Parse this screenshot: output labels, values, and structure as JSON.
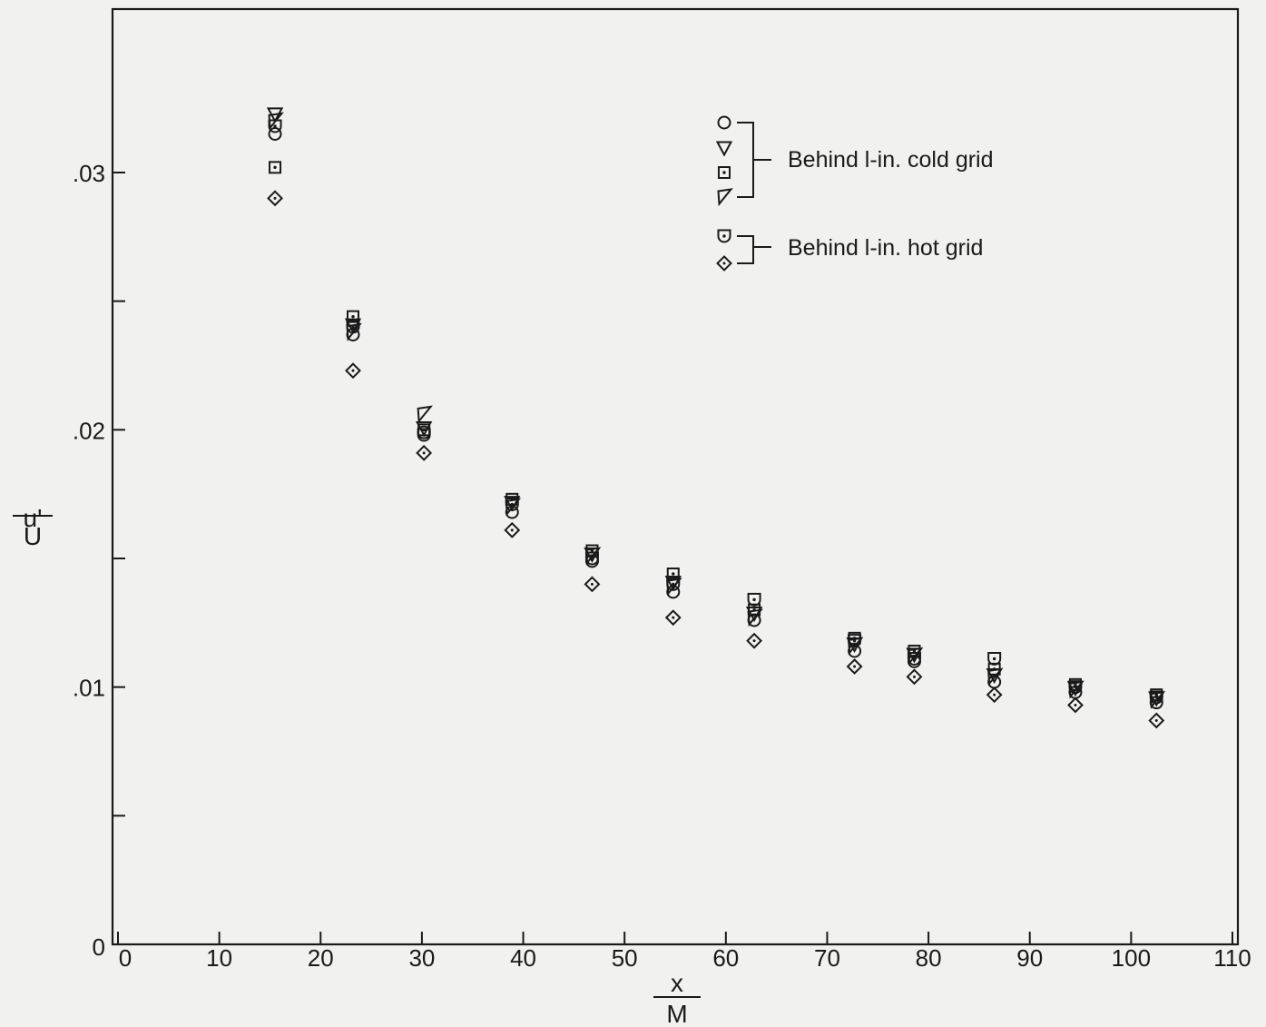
{
  "chart_data": {
    "type": "scatter",
    "xlabel": {
      "numerator": "x",
      "denominator": "M"
    },
    "ylabel": {
      "numerator": "u'",
      "denominator": "U"
    },
    "xlim": [
      0,
      110
    ],
    "ylim": [
      0,
      0.035
    ],
    "xticks": [
      0,
      10,
      20,
      30,
      40,
      50,
      60,
      70,
      80,
      90,
      100,
      110
    ],
    "xtick_labels": [
      "0",
      "10",
      "20",
      "30",
      "40",
      "50",
      "60",
      "70",
      "80",
      "90",
      "100",
      "110"
    ],
    "yticks": [
      0,
      0.005,
      0.01,
      0.015,
      0.02,
      0.025,
      0.03
    ],
    "ytick_labels": [
      "0",
      "",
      ".01",
      "",
      ".02",
      "",
      ".03"
    ],
    "grid": false,
    "legend_placement": "top-right",
    "legend_groups": [
      {
        "label": "Behind l-in. cold grid",
        "series": [
          "circle",
          "triangle_down",
          "square_dot",
          "triangle_tilted"
        ]
      },
      {
        "label": "Behind l-in. hot grid",
        "series": [
          "shield",
          "diamond"
        ]
      }
    ],
    "series": [
      {
        "marker": "circle",
        "x": [
          15.5,
          23.2,
          30.2,
          38.9,
          46.8,
          54.8,
          62.8,
          72.7,
          78.6,
          86.5,
          94.5,
          102.5
        ],
        "y": [
          0.0315,
          0.0237,
          0.0199,
          0.0168,
          0.0149,
          0.0137,
          0.0126,
          0.0114,
          0.011,
          0.0102,
          0.0098,
          0.0094
        ]
      },
      {
        "marker": "triangle_down",
        "x": [
          15.5,
          23.2,
          30.2,
          38.9,
          46.8,
          54.8,
          62.8,
          72.7,
          78.6,
          86.5,
          94.5,
          102.5
        ],
        "y": [
          0.0323,
          0.0241,
          0.0201,
          0.0172,
          0.0152,
          0.0141,
          0.0129,
          0.0117,
          0.0113,
          0.0105,
          0.01,
          0.0096
        ]
      },
      {
        "marker": "square_dot",
        "x": [
          15.5,
          23.2,
          30.2,
          38.9,
          46.8,
          54.8,
          62.8,
          72.7,
          78.6,
          86.5,
          94.5,
          102.5
        ],
        "y": [
          0.0302,
          0.0244,
          0.02,
          0.0173,
          0.0153,
          0.0144,
          0.013,
          0.0119,
          0.0114,
          0.0107,
          0.0101,
          0.0097
        ]
      },
      {
        "marker": "triangle_tilted",
        "x": [
          15.5,
          23.2,
          30.2,
          38.9,
          46.8,
          54.8,
          62.8,
          72.7,
          78.6,
          86.5,
          94.5,
          102.5
        ],
        "y": [
          0.032,
          0.0238,
          0.0206,
          0.017,
          0.0151,
          0.0139,
          0.0127,
          0.0116,
          0.0112,
          0.0104,
          0.0099,
          0.0095
        ]
      },
      {
        "marker": "shield",
        "x": [
          15.5,
          23.2,
          30.2,
          38.9,
          46.8,
          54.8,
          62.8,
          72.7,
          78.6,
          86.5,
          94.5,
          102.5
        ],
        "y": [
          0.0318,
          0.024,
          0.0198,
          0.0171,
          0.015,
          0.014,
          0.0134,
          0.0118,
          0.0111,
          0.0111,
          0.01,
          0.0096
        ]
      },
      {
        "marker": "diamond",
        "x": [
          15.5,
          23.2,
          30.2,
          38.9,
          46.8,
          54.8,
          62.8,
          72.7,
          78.6,
          86.5,
          94.5,
          102.5
        ],
        "y": [
          0.029,
          0.0223,
          0.0191,
          0.0161,
          0.014,
          0.0127,
          0.0118,
          0.0108,
          0.0104,
          0.0097,
          0.0093,
          0.0087
        ]
      }
    ]
  }
}
